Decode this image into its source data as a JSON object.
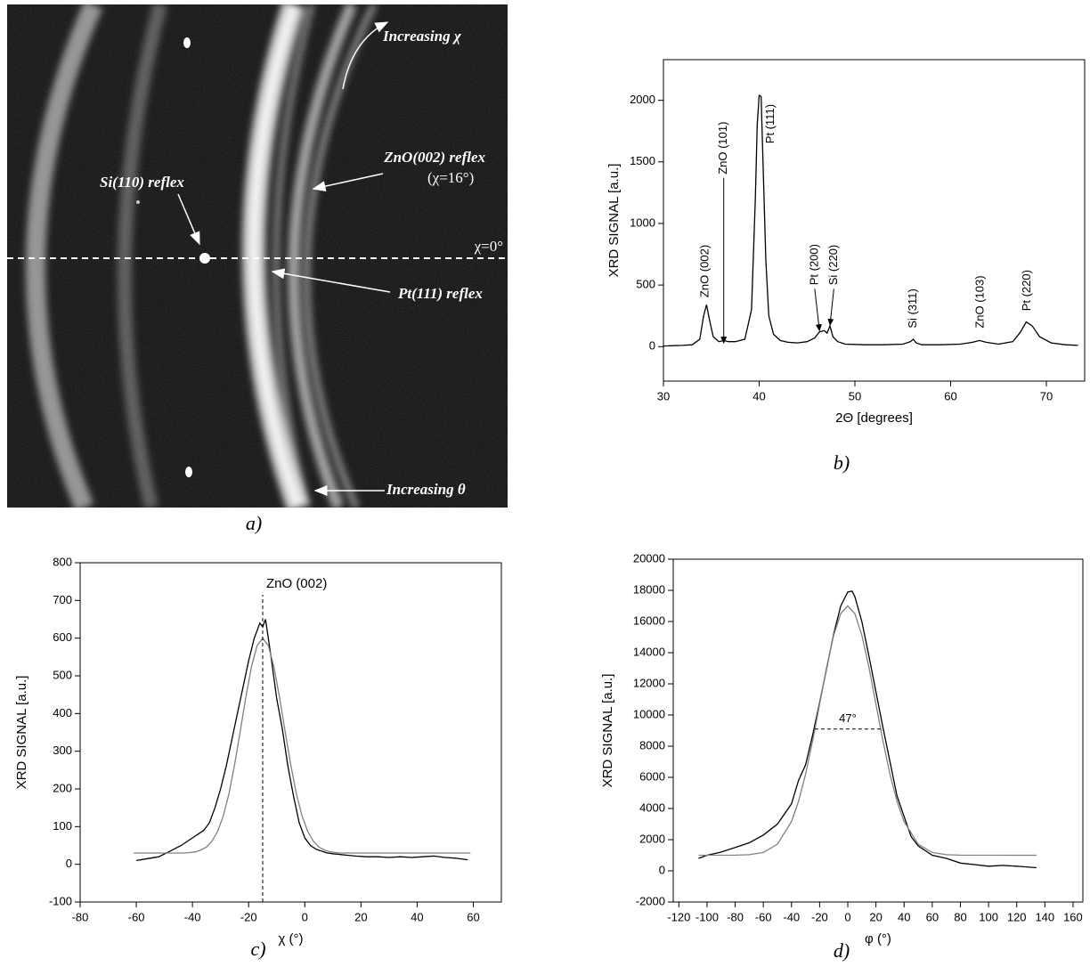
{
  "image": {
    "caption": "a)",
    "annotations": [
      "Increasing χ",
      "ZnO(002) reflex",
      "(χ=16°)",
      "Si(110) reflex",
      "χ=0°",
      "Pt(111) reflex",
      "Increasing θ"
    ]
  },
  "chart_data": [
    {
      "type": "line",
      "caption": "b)",
      "x_label": "2Θ [degrees]",
      "y_label": "XRD SIGNAL [a.u.]",
      "xlim": [
        30,
        74
      ],
      "ylim": [
        -280,
        2330
      ],
      "xticks": [
        30,
        40,
        50,
        60,
        70
      ],
      "yticks": [
        0,
        500,
        1000,
        1500,
        2000
      ],
      "series": [
        {
          "color": "#000000",
          "x": [
            30,
            31,
            32,
            33,
            33.8,
            34.2,
            34.5,
            34.8,
            35.2,
            35.8,
            36.3,
            36.8,
            37.5,
            38.5,
            39.2,
            39.6,
            39.8,
            40.0,
            40.2,
            40.4,
            40.7,
            41.0,
            41.5,
            42.2,
            43,
            44,
            45,
            45.8,
            46.3,
            46.8,
            47.1,
            47.4,
            47.7,
            48.2,
            49,
            51,
            53,
            55,
            55.8,
            56.1,
            56.4,
            57,
            59,
            61,
            62.3,
            63,
            63.7,
            65,
            66.5,
            67.3,
            67.9,
            68.5,
            69.3,
            70.5,
            72,
            73.3
          ],
          "values": [
            5,
            8,
            10,
            15,
            60,
            250,
            340,
            220,
            80,
            40,
            50,
            40,
            40,
            60,
            300,
            1200,
            1800,
            2040,
            2030,
            1500,
            700,
            250,
            100,
            50,
            35,
            30,
            40,
            70,
            120,
            130,
            110,
            170,
            80,
            40,
            20,
            15,
            15,
            20,
            40,
            60,
            30,
            15,
            15,
            20,
            35,
            50,
            35,
            20,
            40,
            120,
            200,
            170,
            80,
            30,
            15,
            10
          ]
        }
      ],
      "annotations": [
        {
          "style": "label",
          "text": "ZnO (002)",
          "x": 34.4,
          "y": 370
        },
        {
          "style": "label",
          "text": "ZnO (101)",
          "x": 36.3,
          "y": 1370,
          "arrow": [
            36.3,
            30
          ]
        },
        {
          "style": "label",
          "text": "Pt (111)",
          "x": 41.2,
          "y": 1620
        },
        {
          "style": "label",
          "text": "Pt (200)",
          "x": 45.8,
          "y": 470,
          "arrow": [
            46.3,
            130
          ]
        },
        {
          "style": "label",
          "text": "Si (220)",
          "x": 47.8,
          "y": 470,
          "arrow": [
            47.4,
            175
          ]
        },
        {
          "style": "label",
          "text": "Si (311)",
          "x": 56.1,
          "y": 120
        },
        {
          "style": "label",
          "text": "ZnO (103)",
          "x": 63.1,
          "y": 120
        },
        {
          "style": "label",
          "text": "Pt (220)",
          "x": 68,
          "y": 260
        }
      ]
    },
    {
      "type": "line",
      "caption": "c)",
      "x_label": "χ (°)",
      "y_label": "XRD SIGNAL [a.u.]",
      "xlim": [
        -80,
        70
      ],
      "ylim": [
        -100,
        800
      ],
      "xticks": [
        -80,
        -60,
        -40,
        -20,
        0,
        20,
        40,
        60
      ],
      "yticks": [
        -100,
        0,
        100,
        200,
        300,
        400,
        500,
        600,
        700,
        800
      ],
      "series": [
        {
          "color": "#000000",
          "x": [
            -60,
            -56,
            -52,
            -48,
            -44,
            -40,
            -36,
            -34,
            -32,
            -30,
            -28,
            -26,
            -24,
            -22,
            -20,
            -18,
            -17,
            -16,
            -15,
            -14,
            -13,
            -12,
            -10,
            -8,
            -6,
            -4,
            -2,
            0,
            2,
            4,
            6,
            8,
            10,
            14,
            18,
            22,
            26,
            30,
            34,
            38,
            42,
            46,
            50,
            54,
            58
          ],
          "values": [
            10,
            15,
            20,
            35,
            50,
            70,
            90,
            110,
            150,
            200,
            260,
            330,
            400,
            470,
            540,
            600,
            620,
            640,
            630,
            650,
            600,
            550,
            440,
            360,
            260,
            180,
            110,
            70,
            50,
            40,
            35,
            30,
            28,
            25,
            22,
            20,
            20,
            18,
            20,
            18,
            20,
            22,
            18,
            16,
            12
          ]
        },
        {
          "color": "#808080",
          "x": [
            -61,
            -51,
            -43,
            -41,
            -39,
            -37,
            -35,
            -33,
            -31,
            -29,
            -27,
            -25,
            -23,
            -21,
            -19,
            -17,
            -15,
            -13,
            -11,
            -9,
            -7,
            -5,
            -3,
            -1,
            1,
            3,
            5,
            7,
            9,
            11,
            13,
            21,
            31,
            41,
            51,
            59
          ],
          "values": [
            30,
            30,
            30,
            31,
            33,
            38,
            46,
            62,
            88,
            129,
            187,
            264,
            352,
            443,
            524,
            580,
            600,
            580,
            524,
            443,
            352,
            264,
            187,
            129,
            88,
            62,
            46,
            38,
            33,
            31,
            30,
            30,
            30,
            30,
            30,
            30
          ]
        }
      ],
      "annotations": [
        {
          "style": "vline",
          "text": "ZnO (002)",
          "x": -15,
          "y": 715
        }
      ]
    },
    {
      "type": "line",
      "caption": "d)",
      "x_label": "φ (°)",
      "y_label": "XRD SIGNAL [a.u.]",
      "xlim": [
        -124,
        167
      ],
      "ylim": [
        -2000,
        20000
      ],
      "xticks": [
        -120,
        -100,
        -80,
        -60,
        -40,
        -20,
        0,
        20,
        40,
        60,
        80,
        100,
        120,
        140,
        160
      ],
      "yticks": [
        -2000,
        0,
        2000,
        4000,
        6000,
        8000,
        10000,
        12000,
        14000,
        16000,
        18000,
        20000
      ],
      "series": [
        {
          "color": "#000000",
          "x": [
            -106,
            -100,
            -90,
            -80,
            -70,
            -60,
            -50,
            -40,
            -35,
            -30,
            -25,
            -20,
            -15,
            -10,
            -5,
            0,
            3,
            5,
            10,
            15,
            20,
            25,
            30,
            35,
            40,
            45,
            50,
            60,
            70,
            80,
            90,
            100,
            110,
            120,
            134
          ],
          "values": [
            800,
            1000,
            1200,
            1500,
            1800,
            2300,
            3000,
            4300,
            5800,
            6800,
            8700,
            10800,
            13000,
            15200,
            17000,
            17900,
            17950,
            17600,
            16000,
            13800,
            11500,
            9200,
            7000,
            4800,
            3500,
            2200,
            1600,
            1000,
            800,
            500,
            400,
            300,
            350,
            300,
            200
          ]
        },
        {
          "color": "#808080",
          "x": [
            -106,
            -80,
            -70,
            -60,
            -50,
            -40,
            -35,
            -30,
            -25,
            -20,
            -15,
            -10,
            -5,
            0,
            5,
            10,
            15,
            20,
            25,
            30,
            35,
            40,
            50,
            60,
            70,
            80,
            134
          ],
          "values": [
            1000,
            1005,
            1035,
            1178,
            1703,
            3165,
            4458,
            6195,
            8325,
            10704,
            13080,
            15120,
            16508,
            17000,
            16508,
            15120,
            13080,
            10704,
            8325,
            6195,
            4458,
            3165,
            1703,
            1178,
            1035,
            1005,
            1000
          ]
        }
      ],
      "annotations": [
        {
          "style": "hline",
          "text": "47°",
          "x": [
            -23.5,
            23.5
          ],
          "y": 9100
        }
      ]
    }
  ]
}
